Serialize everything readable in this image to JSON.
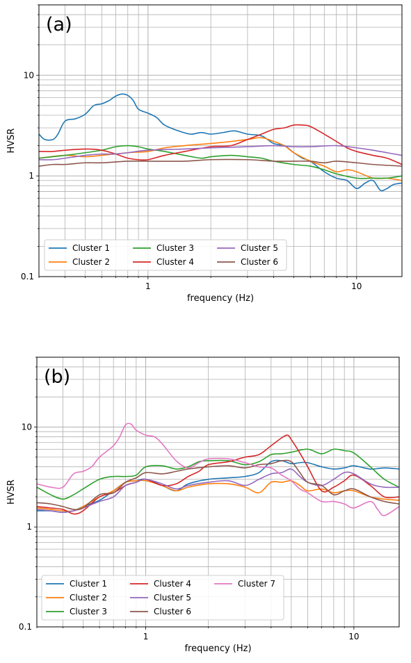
{
  "chart_data": [
    {
      "type": "line",
      "panel_label": "(a)",
      "xlabel": "frequency (Hz)",
      "ylabel": "HVSR",
      "xscale": "log",
      "yscale": "log",
      "xlim": [
        0.3,
        16.5
      ],
      "ylim": [
        0.1,
        50
      ],
      "x_ticks": [
        1,
        10
      ],
      "x_tick_labels": [
        "1",
        "10"
      ],
      "y_ticks": [
        0.1,
        1,
        10
      ],
      "y_tick_labels": [
        "0.1",
        "1",
        "10"
      ],
      "grid": true,
      "legend_placement": "lower-left",
      "legend_columns": 3,
      "series": [
        {
          "name": "Cluster 1",
          "color": "#1f77b4",
          "x": [
            0.3,
            0.32,
            0.35,
            0.37,
            0.4,
            0.45,
            0.5,
            0.55,
            0.6,
            0.65,
            0.7,
            0.75,
            0.8,
            0.85,
            0.9,
            1.0,
            1.1,
            1.2,
            1.4,
            1.6,
            1.8,
            2.0,
            2.3,
            2.6,
            3.0,
            3.5,
            4.0,
            4.5,
            5.0,
            5.5,
            6.0,
            7.0,
            8.0,
            9.0,
            10.0,
            11.0,
            12.0,
            13.0,
            14.0,
            15.0,
            16.5
          ],
          "y": [
            2.6,
            2.3,
            2.3,
            2.6,
            3.5,
            3.7,
            4.1,
            5.0,
            5.2,
            5.6,
            6.2,
            6.5,
            6.3,
            5.6,
            4.6,
            4.2,
            3.8,
            3.2,
            2.8,
            2.6,
            2.7,
            2.6,
            2.7,
            2.8,
            2.6,
            2.5,
            2.1,
            2.0,
            1.7,
            1.5,
            1.4,
            1.1,
            0.95,
            0.9,
            0.75,
            0.85,
            0.9,
            0.72,
            0.75,
            0.82,
            0.85
          ]
        },
        {
          "name": "Cluster 2",
          "color": "#ff7f0e",
          "x": [
            0.3,
            0.4,
            0.5,
            0.6,
            0.8,
            1.0,
            1.2,
            1.5,
            2.0,
            2.5,
            3.0,
            3.5,
            4.0,
            4.5,
            5.0,
            6.0,
            7.0,
            8.0,
            9.0,
            10.0,
            12.0,
            14.0,
            16.5
          ],
          "y": [
            1.5,
            1.6,
            1.55,
            1.6,
            1.7,
            1.75,
            1.9,
            2.0,
            2.1,
            2.2,
            2.3,
            2.4,
            2.2,
            2.0,
            1.7,
            1.4,
            1.25,
            1.1,
            1.15,
            1.1,
            0.95,
            0.95,
            0.9
          ]
        },
        {
          "name": "Cluster 3",
          "color": "#2ca02c",
          "x": [
            0.3,
            0.4,
            0.5,
            0.6,
            0.7,
            0.8,
            0.9,
            1.0,
            1.2,
            1.5,
            1.8,
            2.0,
            2.5,
            3.0,
            3.5,
            4.0,
            5.0,
            6.0,
            7.0,
            8.0,
            10.0,
            12.0,
            14.0,
            16.5
          ],
          "y": [
            1.5,
            1.6,
            1.7,
            1.8,
            1.95,
            2.0,
            1.95,
            1.85,
            1.75,
            1.6,
            1.5,
            1.55,
            1.6,
            1.55,
            1.5,
            1.4,
            1.3,
            1.25,
            1.15,
            1.05,
            0.95,
            0.95,
            0.95,
            1.0
          ]
        },
        {
          "name": "Cluster 4",
          "color": "#d62728",
          "x": [
            0.3,
            0.35,
            0.4,
            0.5,
            0.6,
            0.7,
            0.8,
            0.9,
            1.0,
            1.2,
            1.5,
            2.0,
            2.5,
            3.0,
            3.5,
            4.0,
            4.5,
            5.0,
            5.5,
            6.0,
            7.0,
            8.0,
            9.0,
            10.0,
            12.0,
            14.0,
            16.5
          ],
          "y": [
            1.75,
            1.75,
            1.8,
            1.85,
            1.8,
            1.65,
            1.5,
            1.45,
            1.45,
            1.6,
            1.75,
            1.95,
            2.0,
            2.3,
            2.6,
            2.9,
            3.0,
            3.2,
            3.2,
            3.1,
            2.6,
            2.2,
            1.9,
            1.75,
            1.6,
            1.5,
            1.3
          ]
        },
        {
          "name": "Cluster 5",
          "color": "#9467bd",
          "x": [
            0.3,
            0.35,
            0.4,
            0.5,
            0.6,
            0.7,
            0.8,
            1.0,
            1.5,
            2.0,
            3.0,
            4.0,
            5.0,
            6.0,
            8.0,
            10.0,
            12.0,
            14.0,
            16.5
          ],
          "y": [
            1.45,
            1.45,
            1.5,
            1.6,
            1.65,
            1.65,
            1.7,
            1.8,
            1.85,
            1.9,
            1.95,
            2.0,
            1.95,
            1.95,
            2.0,
            1.9,
            1.8,
            1.7,
            1.6
          ]
        },
        {
          "name": "Cluster 6",
          "color": "#8c564b",
          "x": [
            0.3,
            0.35,
            0.4,
            0.5,
            0.6,
            0.8,
            1.0,
            1.5,
            2.0,
            3.0,
            4.0,
            5.0,
            6.0,
            7.0,
            8.0,
            10.0,
            12.0,
            16.5
          ],
          "y": [
            1.25,
            1.3,
            1.3,
            1.35,
            1.35,
            1.4,
            1.4,
            1.4,
            1.45,
            1.45,
            1.4,
            1.4,
            1.4,
            1.35,
            1.4,
            1.35,
            1.3,
            1.25
          ]
        }
      ]
    },
    {
      "type": "line",
      "panel_label": "(b)",
      "xlabel": "frequency (Hz)",
      "ylabel": "HVSR",
      "xscale": "log",
      "yscale": "log",
      "xlim": [
        0.3,
        16.5
      ],
      "ylim": [
        0.1,
        50
      ],
      "x_ticks": [
        1,
        10
      ],
      "x_tick_labels": [
        "1",
        "10"
      ],
      "y_ticks": [
        0.1,
        1,
        10
      ],
      "y_tick_labels": [
        "0.1",
        "1",
        "10"
      ],
      "grid": true,
      "legend_placement": "lower-left",
      "legend_columns": 3,
      "series": [
        {
          "name": "Cluster 1",
          "color": "#1f77b4",
          "x": [
            0.3,
            0.35,
            0.4,
            0.45,
            0.5,
            0.6,
            0.7,
            0.8,
            0.9,
            1.0,
            1.2,
            1.4,
            1.6,
            2.0,
            2.5,
            3.0,
            3.5,
            4.0,
            4.5,
            5.0,
            5.5,
            6.0,
            7.0,
            8.0,
            9.0,
            10.0,
            12.0,
            14.0,
            16.5
          ],
          "y": [
            1.45,
            1.45,
            1.4,
            1.45,
            1.6,
            1.85,
            2.3,
            2.8,
            2.9,
            3.0,
            2.6,
            2.3,
            2.7,
            3.0,
            3.1,
            3.2,
            3.5,
            4.5,
            4.6,
            4.3,
            4.4,
            4.4,
            4.0,
            3.8,
            3.9,
            4.1,
            3.8,
            3.9,
            3.8
          ]
        },
        {
          "name": "Cluster 2",
          "color": "#ff7f0e",
          "x": [
            0.3,
            0.35,
            0.4,
            0.45,
            0.5,
            0.6,
            0.7,
            0.8,
            0.9,
            1.0,
            1.2,
            1.4,
            1.6,
            2.0,
            2.5,
            3.0,
            3.5,
            4.0,
            4.5,
            5.0,
            5.5,
            6.0,
            7.0,
            8.0,
            9.0,
            10.0,
            12.0,
            14.0,
            16.5
          ],
          "y": [
            1.55,
            1.5,
            1.45,
            1.45,
            1.6,
            2.0,
            2.3,
            2.8,
            2.9,
            2.9,
            2.6,
            2.3,
            2.5,
            2.7,
            2.7,
            2.5,
            2.2,
            2.8,
            2.8,
            2.9,
            2.6,
            2.3,
            2.4,
            2.2,
            2.3,
            2.3,
            2.0,
            1.9,
            1.85
          ]
        },
        {
          "name": "Cluster 3",
          "color": "#2ca02c",
          "x": [
            0.3,
            0.35,
            0.4,
            0.45,
            0.5,
            0.6,
            0.7,
            0.8,
            0.9,
            1.0,
            1.2,
            1.4,
            1.6,
            1.8,
            2.0,
            2.5,
            3.0,
            3.5,
            4.0,
            4.5,
            5.0,
            6.0,
            7.0,
            8.0,
            9.0,
            10.0,
            12.0,
            14.0,
            16.5
          ],
          "y": [
            2.5,
            2.1,
            1.9,
            2.1,
            2.4,
            3.0,
            3.2,
            3.2,
            3.3,
            4.0,
            4.1,
            3.8,
            4.0,
            4.5,
            4.6,
            4.6,
            4.2,
            4.5,
            5.3,
            5.4,
            5.6,
            6.0,
            5.4,
            6.0,
            5.8,
            5.5,
            4.0,
            3.0,
            2.5
          ]
        },
        {
          "name": "Cluster 4",
          "color": "#d62728",
          "x": [
            0.3,
            0.35,
            0.4,
            0.45,
            0.5,
            0.6,
            0.7,
            0.8,
            0.9,
            1.0,
            1.2,
            1.4,
            1.6,
            1.8,
            2.0,
            2.5,
            3.0,
            3.5,
            4.0,
            4.5,
            4.8,
            5.0,
            5.5,
            6.0,
            7.0,
            8.0,
            9.0,
            10.0,
            12.0,
            14.0,
            16.5
          ],
          "y": [
            1.6,
            1.55,
            1.5,
            1.35,
            1.45,
            2.0,
            2.2,
            2.6,
            2.8,
            3.0,
            2.6,
            2.7,
            3.2,
            3.6,
            4.2,
            4.5,
            5.0,
            5.3,
            6.5,
            7.8,
            8.3,
            7.5,
            5.5,
            4.0,
            2.3,
            2.5,
            2.9,
            3.3,
            2.6,
            2.0,
            2.0
          ]
        },
        {
          "name": "Cluster 5",
          "color": "#9467bd",
          "x": [
            0.3,
            0.35,
            0.4,
            0.45,
            0.5,
            0.6,
            0.7,
            0.8,
            0.9,
            1.0,
            1.2,
            1.4,
            1.6,
            2.0,
            2.5,
            3.0,
            3.5,
            4.0,
            4.5,
            5.0,
            5.5,
            6.0,
            7.0,
            8.0,
            9.0,
            10.0,
            12.0,
            14.0,
            16.5
          ],
          "y": [
            1.5,
            1.45,
            1.4,
            1.45,
            1.55,
            1.8,
            2.0,
            2.6,
            2.8,
            3.0,
            2.7,
            2.4,
            2.6,
            2.8,
            2.9,
            2.6,
            3.0,
            3.4,
            3.5,
            3.8,
            3.2,
            2.8,
            2.6,
            3.0,
            3.5,
            3.4,
            2.7,
            2.5,
            2.5
          ]
        },
        {
          "name": "Cluster 6",
          "color": "#8c564b",
          "x": [
            0.3,
            0.35,
            0.4,
            0.45,
            0.5,
            0.6,
            0.7,
            0.8,
            0.9,
            1.0,
            1.2,
            1.4,
            1.6,
            2.0,
            2.5,
            3.0,
            3.5,
            4.0,
            4.5,
            5.0,
            5.5,
            6.0,
            7.0,
            8.0,
            9.0,
            10.0,
            12.0,
            14.0,
            16.5
          ],
          "y": [
            1.75,
            1.7,
            1.6,
            1.5,
            1.55,
            2.1,
            2.2,
            2.8,
            3.1,
            3.5,
            3.4,
            3.6,
            3.8,
            4.0,
            4.1,
            3.9,
            4.2,
            4.3,
            4.6,
            4.5,
            3.5,
            2.8,
            2.6,
            2.1,
            2.3,
            2.4,
            2.0,
            1.8,
            1.7
          ]
        },
        {
          "name": "Cluster 7",
          "color": "#e377c2",
          "x": [
            0.3,
            0.35,
            0.4,
            0.45,
            0.5,
            0.55,
            0.6,
            0.7,
            0.75,
            0.8,
            0.85,
            0.9,
            1.0,
            1.1,
            1.2,
            1.4,
            1.6,
            1.8,
            2.0,
            2.5,
            3.0,
            3.5,
            4.0,
            4.5,
            5.0,
            5.5,
            6.0,
            7.0,
            8.0,
            9.0,
            10.0,
            12.0,
            13.0,
            14.0,
            16.5
          ],
          "y": [
            2.7,
            2.5,
            2.5,
            3.4,
            3.6,
            4.0,
            5.0,
            6.5,
            8.0,
            10.5,
            10.7,
            9.3,
            8.3,
            8.0,
            6.8,
            4.6,
            3.9,
            4.4,
            4.8,
            4.8,
            4.4,
            4.0,
            3.9,
            3.3,
            2.9,
            2.4,
            2.2,
            1.8,
            1.8,
            1.7,
            1.55,
            1.8,
            1.5,
            1.3,
            1.6
          ]
        }
      ]
    }
  ]
}
